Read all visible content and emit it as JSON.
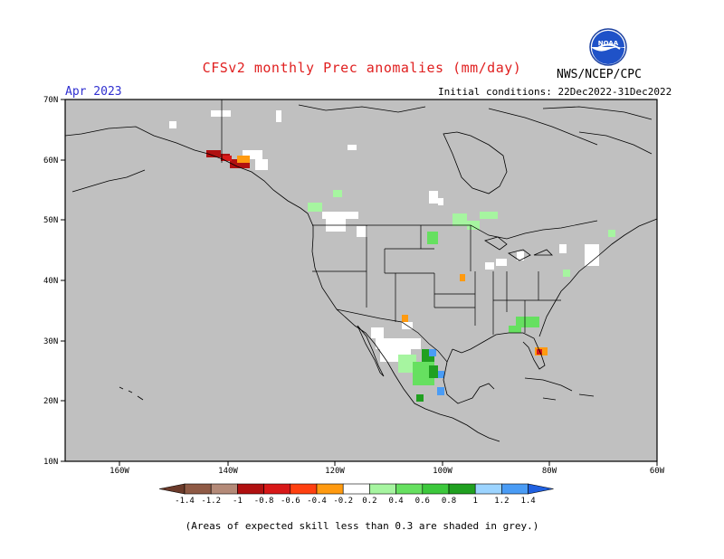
{
  "title": "CFSv2 monthly Prec anomalies (mm/day)",
  "valid_month": "Apr 2023",
  "agency": "NWS/NCEP/CPC",
  "init_conditions": "Initial conditions: 22Dec2022-31Dec2022",
  "logo_text": "NOAA",
  "footnote": "(Areas of expected skill less than 0.3 are shaded in grey.)",
  "map": {
    "lat_labels": [
      "70N",
      "60N",
      "50N",
      "40N",
      "30N",
      "20N",
      "10N"
    ],
    "lon_labels": [
      "160W",
      "140W",
      "120W",
      "100W",
      "80W",
      "60W"
    ],
    "skill_mask_color": "#c0c0c0",
    "unshaded_color": "#ffffff"
  },
  "colorbar": {
    "labels": [
      "-1.4",
      "-1.2",
      "-1",
      "-0.8",
      "-0.6",
      "-0.4",
      "-0.2",
      "0.2",
      "0.4",
      "0.6",
      "0.8",
      "1",
      "1.2",
      "1.4"
    ],
    "colors": [
      "#6b3a2a",
      "#8f5a45",
      "#b48a78",
      "#b01010",
      "#d81818",
      "#ff4010",
      "#ff9a10",
      "#ffffff",
      "#a6f5a0",
      "#66e060",
      "#3cc83c",
      "#20a020",
      "#9cd4ff",
      "#4a9cf5",
      "#2060e0"
    ]
  },
  "anomaly_patches": [
    {
      "region": "Gulf of Alaska coast",
      "category": "strong dry",
      "color": "#b01010"
    },
    {
      "region": "Southeast Alaska",
      "category": "moderate dry",
      "color": "#ff9a10"
    },
    {
      "region": "South Florida",
      "category": "dry",
      "color": "#ff9a10"
    },
    {
      "region": "Mexico / Sierra Madre",
      "category": "wet",
      "color": "#66e060"
    },
    {
      "region": "Southeast US",
      "category": "wet",
      "color": "#66e060"
    },
    {
      "region": "Great Lakes / Ontario",
      "category": "wet",
      "color": "#a6f5a0"
    },
    {
      "region": "Southern Mexico",
      "category": "very wet",
      "color": "#4a9cf5"
    }
  ]
}
